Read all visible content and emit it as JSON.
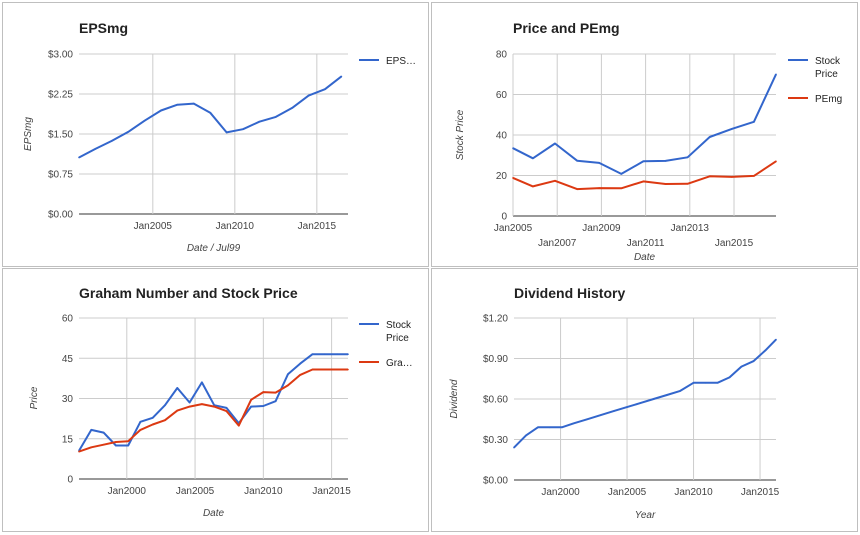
{
  "chart_data": [
    {
      "type": "line",
      "title": "EPSmg",
      "xlabel": "Date / Jul99",
      "ylabel": "EPSmg",
      "xlim": [
        2000.5,
        2016.9
      ],
      "ylim": [
        0,
        3
      ],
      "yticks": [
        0,
        0.75,
        1.5,
        2.25,
        3
      ],
      "ytick_labels": [
        "$0.00",
        "$0.75",
        "$1.50",
        "$2.25",
        "$3.00"
      ],
      "xticks": [
        {
          "value": 2005.0,
          "label": "Jan2005"
        },
        {
          "value": 2010.0,
          "label": "Jan2010"
        },
        {
          "value": 2015.0,
          "label": "Jan2015"
        }
      ],
      "xtick_levels": 1,
      "grid": true,
      "legend_position": "right",
      "series": [
        {
          "name": "EPS…",
          "color": "#3366cc",
          "x": [
            2000.5,
            2001.5,
            2002.5,
            2003.5,
            2004.5,
            2005.5,
            2006.5,
            2007.5,
            2008.5,
            2009.5,
            2010.5,
            2011.5,
            2012.5,
            2013.5,
            2014.5,
            2015.5,
            2016.5
          ],
          "values": [
            1.06,
            1.22,
            1.37,
            1.54,
            1.75,
            1.94,
            2.05,
            2.07,
            1.9,
            1.53,
            1.59,
            1.73,
            1.82,
            1.99,
            2.22,
            2.34,
            2.58
          ]
        }
      ]
    },
    {
      "type": "line",
      "title": "Price and PEmg",
      "xlabel": "Date",
      "ylabel": "Stock Price",
      "xlim": [
        2005.0,
        2016.9
      ],
      "ylim": [
        0,
        80
      ],
      "yticks": [
        0,
        20,
        40,
        60,
        80
      ],
      "ytick_labels": [
        "0",
        "20",
        "40",
        "60",
        "80"
      ],
      "xticks": [
        {
          "value": 2005.0,
          "label": "Jan2005",
          "level": 0
        },
        {
          "value": 2007.0,
          "label": "Jan2007",
          "level": 1
        },
        {
          "value": 2009.0,
          "label": "Jan2009",
          "level": 0
        },
        {
          "value": 2011.0,
          "label": "Jan2011",
          "level": 1
        },
        {
          "value": 2013.0,
          "label": "Jan2013",
          "level": 0
        },
        {
          "value": 2015.0,
          "label": "Jan2015",
          "level": 1
        }
      ],
      "xtick_levels": 2,
      "grid": true,
      "legend_position": "right",
      "series": [
        {
          "name": [
            "Stock",
            "Price"
          ],
          "color": "#3366cc",
          "x": [
            2005.0,
            2005.9,
            2006.9,
            2007.9,
            2008.9,
            2009.9,
            2010.9,
            2011.9,
            2012.9,
            2013.9,
            2014.9,
            2015.9,
            2016.9
          ],
          "values": [
            33.5,
            28.5,
            35.8,
            27.3,
            26.2,
            20.8,
            27.0,
            27.2,
            29.0,
            39.0,
            43.0,
            46.5,
            70.0
          ]
        },
        {
          "name": "PEmg",
          "color": "#dc3912",
          "x": [
            2005.0,
            2005.9,
            2006.9,
            2007.9,
            2008.9,
            2009.9,
            2010.9,
            2011.9,
            2012.9,
            2013.9,
            2014.9,
            2015.9,
            2016.9
          ],
          "values": [
            18.8,
            14.6,
            17.4,
            13.3,
            13.8,
            13.7,
            17.1,
            15.8,
            15.9,
            19.6,
            19.3,
            19.8,
            27.0
          ]
        }
      ]
    },
    {
      "type": "line",
      "title": "Graham Number and Stock Price",
      "xlabel": "Date",
      "ylabel": "Price",
      "xlim": [
        1996.5,
        2016.2
      ],
      "ylim": [
        0,
        60
      ],
      "yticks": [
        0,
        15,
        30,
        45,
        60
      ],
      "ytick_labels": [
        "0",
        "15",
        "30",
        "45",
        "60"
      ],
      "xticks": [
        {
          "value": 2000.0,
          "label": "Jan2000"
        },
        {
          "value": 2005.0,
          "label": "Jan2005"
        },
        {
          "value": 2010.0,
          "label": "Jan2010"
        },
        {
          "value": 2015.0,
          "label": "Jan2015"
        }
      ],
      "xtick_levels": 1,
      "grid": true,
      "legend_position": "right",
      "series": [
        {
          "name": [
            "Stock",
            "Price"
          ],
          "color": "#3366cc",
          "x": [
            1996.5,
            1997.4,
            1998.3,
            1999.2,
            2000.1,
            2001.0,
            2001.9,
            2002.8,
            2003.7,
            2004.6,
            2005.5,
            2006.4,
            2007.3,
            2008.2,
            2009.1,
            2010.0,
            2010.9,
            2011.8,
            2012.7,
            2013.6,
            2014.5,
            2015.4,
            2016.2
          ],
          "values": [
            10.5,
            18.3,
            17.3,
            12.5,
            12.5,
            21.3,
            22.8,
            27.5,
            33.9,
            28.5,
            36.0,
            27.5,
            26.5,
            20.8,
            27.0,
            27.2,
            29.0,
            39.0,
            43.0,
            46.5,
            46.5,
            46.5,
            46.5
          ]
        },
        {
          "name": "Gra…",
          "color": "#dc3912",
          "x": [
            1996.5,
            1997.4,
            1998.3,
            1999.2,
            2000.1,
            2001.0,
            2001.9,
            2002.8,
            2003.7,
            2004.6,
            2005.5,
            2006.4,
            2007.3,
            2008.2,
            2009.1,
            2010.0,
            2010.9,
            2011.8,
            2012.7,
            2013.6,
            2014.5,
            2015.4,
            2016.2
          ],
          "values": [
            10.2,
            11.8,
            12.8,
            13.8,
            14.1,
            18.3,
            20.3,
            21.9,
            25.5,
            27.0,
            27.9,
            27.0,
            25.3,
            19.9,
            29.5,
            32.4,
            32.2,
            34.9,
            38.8,
            40.8,
            40.8,
            40.8,
            40.8
          ]
        }
      ]
    },
    {
      "type": "line",
      "title": "Dividend History",
      "xlabel": "Year",
      "ylabel": "Dividend",
      "xlim": [
        1996.5,
        2016.2
      ],
      "ylim": [
        0,
        1.2
      ],
      "yticks": [
        0,
        0.3,
        0.6,
        0.9,
        1.2
      ],
      "ytick_labels": [
        "$0.00",
        "$0.30",
        "$0.60",
        "$0.90",
        "$1.20"
      ],
      "xticks": [
        {
          "value": 2000.0,
          "label": "Jan2000"
        },
        {
          "value": 2005.0,
          "label": "Jan2005"
        },
        {
          "value": 2010.0,
          "label": "Jan2010"
        },
        {
          "value": 2015.0,
          "label": "Jan2015"
        }
      ],
      "xtick_levels": 1,
      "grid": true,
      "legend_position": "none",
      "series": [
        {
          "color": "#3366cc",
          "x": [
            1996.5,
            1997.4,
            1998.3,
            1999.2,
            2000.1,
            2001.0,
            2002.0,
            2003.0,
            2004.0,
            2005.0,
            2006.0,
            2007.0,
            2008.0,
            2009.0,
            2010.0,
            2010.9,
            2011.8,
            2012.7,
            2013.6,
            2014.5,
            2015.4,
            2016.2
          ],
          "values": [
            0.24,
            0.33,
            0.39,
            0.39,
            0.39,
            0.42,
            0.45,
            0.48,
            0.51,
            0.54,
            0.57,
            0.6,
            0.63,
            0.66,
            0.72,
            0.72,
            0.72,
            0.76,
            0.84,
            0.88,
            0.96,
            1.04
          ]
        }
      ]
    }
  ]
}
